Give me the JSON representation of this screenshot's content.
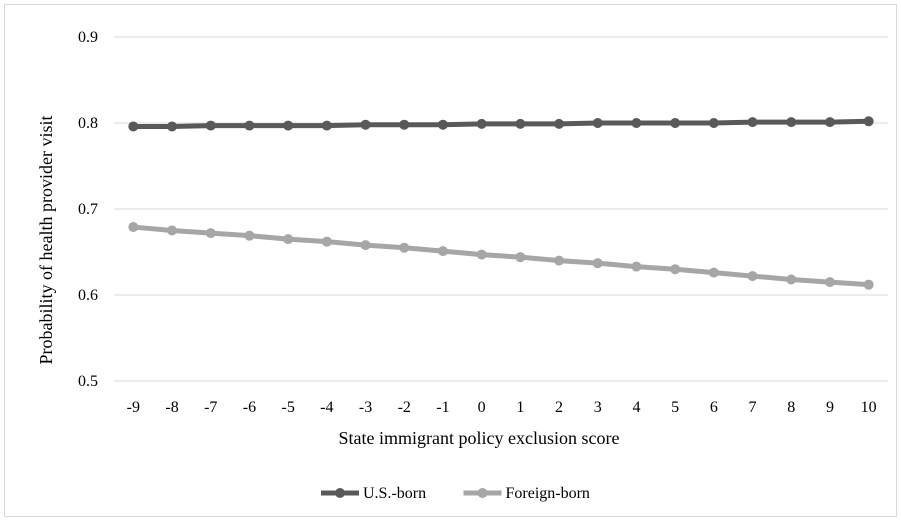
{
  "chart_data": {
    "type": "line",
    "title": "",
    "xlabel": "State immigrant policy exclusion score",
    "ylabel": "Probability of health provider visit",
    "categories": [
      "-9",
      "-8",
      "-7",
      "-6",
      "-5",
      "-4",
      "-3",
      "-2",
      "-1",
      "0",
      "1",
      "2",
      "3",
      "4",
      "5",
      "6",
      "7",
      "8",
      "9",
      "10"
    ],
    "ylim": [
      0.5,
      0.9
    ],
    "yticks": [
      "0.5",
      "0.6",
      "0.7",
      "0.8",
      "0.9"
    ],
    "grid": true,
    "legend_position": "bottom",
    "series": [
      {
        "name": "U.S.-born",
        "color": "#595959",
        "values": [
          0.796,
          0.796,
          0.797,
          0.797,
          0.797,
          0.797,
          0.798,
          0.798,
          0.798,
          0.799,
          0.799,
          0.799,
          0.8,
          0.8,
          0.8,
          0.8,
          0.801,
          0.801,
          0.801,
          0.802
        ]
      },
      {
        "name": "Foreign-born",
        "color": "#a6a6a6",
        "values": [
          0.679,
          0.675,
          0.672,
          0.669,
          0.665,
          0.662,
          0.658,
          0.655,
          0.651,
          0.647,
          0.644,
          0.64,
          0.637,
          0.633,
          0.63,
          0.626,
          0.622,
          0.618,
          0.615,
          0.612
        ]
      }
    ]
  }
}
